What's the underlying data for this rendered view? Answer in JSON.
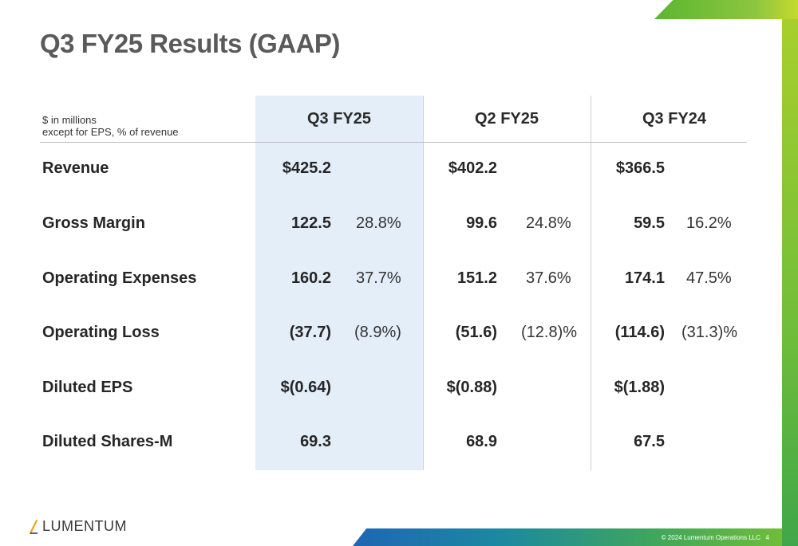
{
  "title": "Q3 FY25 Results (GAAP)",
  "unit_note": {
    "line1": "$ in millions",
    "line2": "except for EPS, % of revenue"
  },
  "columns": [
    "Q3 FY25",
    "Q2 FY25",
    "Q3 FY24"
  ],
  "rows": [
    {
      "label": "Revenue",
      "cells": [
        {
          "value": "$425.2",
          "pct": ""
        },
        {
          "value": "$402.2",
          "pct": ""
        },
        {
          "value": "$366.5",
          "pct": ""
        }
      ]
    },
    {
      "label": "Gross Margin",
      "cells": [
        {
          "value": "122.5",
          "pct": "28.8%"
        },
        {
          "value": "99.6",
          "pct": "24.8%"
        },
        {
          "value": "59.5",
          "pct": "16.2%"
        }
      ]
    },
    {
      "label": "Operating Expenses",
      "cells": [
        {
          "value": "160.2",
          "pct": "37.7%"
        },
        {
          "value": "151.2",
          "pct": "37.6%"
        },
        {
          "value": "174.1",
          "pct": "47.5%"
        }
      ]
    },
    {
      "label": "Operating Loss",
      "cells": [
        {
          "value": "(37.7)",
          "pct": "(8.9%)"
        },
        {
          "value": "(51.6)",
          "pct": "(12.8)%"
        },
        {
          "value": "(114.6)",
          "pct": "(31.3)%"
        }
      ]
    },
    {
      "label": "Diluted EPS",
      "cells": [
        {
          "value": "$(0.64)",
          "pct": ""
        },
        {
          "value": "$(0.88)",
          "pct": ""
        },
        {
          "value": "$(1.88)",
          "pct": ""
        }
      ]
    },
    {
      "label": "Diluted Shares-M",
      "cells": [
        {
          "value": "69.3",
          "pct": ""
        },
        {
          "value": "68.9",
          "pct": ""
        },
        {
          "value": "67.5",
          "pct": ""
        }
      ]
    }
  ],
  "logo_text": "LUMENTUM",
  "footer": {
    "copyright": "© 2024 Lumentum Operations LLC",
    "page_number": "4"
  },
  "colors": {
    "highlight_column": "#e4eef9",
    "brand_green": "#6fbd3a",
    "brand_blue": "#1f66b3",
    "title": "#5a5a5a"
  }
}
